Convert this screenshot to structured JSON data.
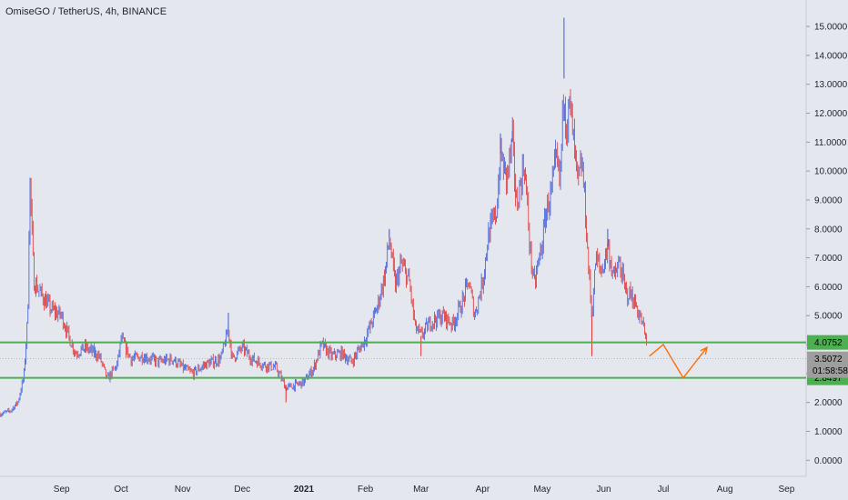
{
  "title": "OmiseGO / TetherUS, 4h, BINANCE",
  "colors": {
    "background": "#e5e7ee",
    "up": "#3b5bdb",
    "down": "#e03131",
    "support_line": "#4caf50",
    "projection": "#ff6d00",
    "price_tag_bg": "#9e9e9e"
  },
  "chart_data": {
    "type": "candlestick",
    "ylim": [
      -0.4,
      15.6
    ],
    "y_ticks": [
      "15.0000",
      "14.0000",
      "13.0000",
      "12.0000",
      "11.0000",
      "10.0000",
      "9.0000",
      "8.0000",
      "7.0000",
      "6.0000",
      "5.0000",
      "4.0000",
      "3.0000",
      "2.0000",
      "1.0000",
      "0.0000"
    ],
    "y_tick_values": [
      15,
      14,
      13,
      12,
      11,
      10,
      9,
      8,
      7,
      6,
      5,
      4,
      3,
      2,
      1,
      0
    ],
    "x_tick_labels": [
      "Sep",
      "Oct",
      "Nov",
      "Dec",
      "2021",
      "Feb",
      "Mar",
      "Apr",
      "May",
      "Jun",
      "Jul",
      "Aug",
      "Sep"
    ],
    "x_tick_dates": [
      "2020-09-01",
      "2020-10-01",
      "2020-11-01",
      "2020-12-01",
      "2021-01-01",
      "2021-02-01",
      "2021-03-01",
      "2021-04-01",
      "2021-05-01",
      "2021-06-01",
      "2021-07-01",
      "2021-08-01",
      "2021-09-01"
    ],
    "price_path": [
      [
        "2020-08-01",
        1.6
      ],
      [
        "2020-08-06",
        1.7
      ],
      [
        "2020-08-10",
        2.0
      ],
      [
        "2020-08-13",
        2.9
      ],
      [
        "2020-08-15",
        5.0
      ],
      [
        "2020-08-16",
        9.8
      ],
      [
        "2020-08-18",
        6.2
      ],
      [
        "2020-08-22",
        5.7
      ],
      [
        "2020-08-27",
        5.2
      ],
      [
        "2020-09-01",
        5.0
      ],
      [
        "2020-09-05",
        4.2
      ],
      [
        "2020-09-08",
        3.7
      ],
      [
        "2020-09-13",
        3.9
      ],
      [
        "2020-09-20",
        3.6
      ],
      [
        "2020-09-24",
        2.8
      ],
      [
        "2020-09-29",
        3.3
      ],
      [
        "2020-10-01",
        4.2
      ],
      [
        "2020-10-06",
        3.5
      ],
      [
        "2020-10-12",
        3.6
      ],
      [
        "2020-10-20",
        3.4
      ],
      [
        "2020-10-27",
        3.5
      ],
      [
        "2020-11-01",
        3.2
      ],
      [
        "2020-11-06",
        3.0
      ],
      [
        "2020-11-12",
        3.3
      ],
      [
        "2020-11-20",
        3.5
      ],
      [
        "2020-11-24",
        4.5
      ],
      [
        "2020-11-26",
        3.5
      ],
      [
        "2020-12-01",
        3.9
      ],
      [
        "2020-12-06",
        3.5
      ],
      [
        "2020-12-12",
        3.3
      ],
      [
        "2020-12-18",
        3.2
      ],
      [
        "2020-12-23",
        2.5
      ],
      [
        "2020-12-28",
        2.6
      ],
      [
        "2021-01-01",
        2.7
      ],
      [
        "2021-01-06",
        3.2
      ],
      [
        "2021-01-10",
        4.0
      ],
      [
        "2021-01-15",
        3.6
      ],
      [
        "2021-01-20",
        3.7
      ],
      [
        "2021-01-25",
        3.4
      ],
      [
        "2021-02-01",
        4.2
      ],
      [
        "2021-02-07",
        5.3
      ],
      [
        "2021-02-11",
        6.5
      ],
      [
        "2021-02-13",
        7.7
      ],
      [
        "2021-02-16",
        6.0
      ],
      [
        "2021-02-19",
        6.8
      ],
      [
        "2021-02-23",
        6.2
      ],
      [
        "2021-02-26",
        4.6
      ],
      [
        "2021-03-01",
        4.3
      ],
      [
        "2021-03-06",
        4.8
      ],
      [
        "2021-03-12",
        5.0
      ],
      [
        "2021-03-17",
        4.7
      ],
      [
        "2021-03-22",
        5.5
      ],
      [
        "2021-03-25",
        6.2
      ],
      [
        "2021-03-28",
        5.0
      ],
      [
        "2021-04-01",
        6.2
      ],
      [
        "2021-04-04",
        7.8
      ],
      [
        "2021-04-08",
        8.6
      ],
      [
        "2021-04-10",
        10.6
      ],
      [
        "2021-04-13",
        9.7
      ],
      [
        "2021-04-16",
        11.0
      ],
      [
        "2021-04-18",
        8.8
      ],
      [
        "2021-04-22",
        10.3
      ],
      [
        "2021-04-25",
        7.2
      ],
      [
        "2021-04-27",
        6.0
      ],
      [
        "2021-04-29",
        6.8
      ],
      [
        "2021-05-01",
        7.5
      ],
      [
        "2021-05-03",
        8.6
      ],
      [
        "2021-05-06",
        9.4
      ],
      [
        "2021-05-08",
        10.4
      ],
      [
        "2021-05-10",
        9.6
      ],
      [
        "2021-05-12",
        13.2
      ],
      [
        "2021-05-13",
        11.5
      ],
      [
        "2021-05-15",
        12.3
      ],
      [
        "2021-05-17",
        10.8
      ],
      [
        "2021-05-19",
        9.5
      ],
      [
        "2021-05-21",
        10.3
      ],
      [
        "2021-05-23",
        8.4
      ],
      [
        "2021-05-24",
        7.0
      ],
      [
        "2021-05-26",
        5.0
      ],
      [
        "2021-05-28",
        7.0
      ],
      [
        "2021-05-31",
        6.5
      ],
      [
        "2021-06-03",
        7.4
      ],
      [
        "2021-06-06",
        6.3
      ],
      [
        "2021-06-09",
        6.8
      ],
      [
        "2021-06-12",
        5.8
      ],
      [
        "2021-06-15",
        5.7
      ],
      [
        "2021-06-18",
        5.2
      ],
      [
        "2021-06-21",
        4.6
      ],
      [
        "2021-06-23",
        3.8
      ]
    ],
    "spikes": [
      [
        "2020-08-16",
        9.8
      ],
      [
        "2021-02-13",
        8.0
      ],
      [
        "2021-04-10",
        11.3
      ],
      [
        "2021-05-12",
        15.3
      ],
      [
        "2021-05-26",
        3.6
      ],
      [
        "2021-06-03",
        8.0
      ],
      [
        "2020-12-23",
        2.0
      ],
      [
        "2021-03-01",
        3.6
      ],
      [
        "2020-11-24",
        5.1
      ],
      [
        "2021-04-16",
        11.4
      ]
    ],
    "annotations": {
      "resistance": 4.0752,
      "support": 2.8497,
      "projection": [
        [
          "2021-06-24",
          3.6
        ],
        [
          "2021-07-01",
          4.0
        ],
        [
          "2021-07-11",
          2.85
        ],
        [
          "2021-07-23",
          3.9
        ]
      ]
    },
    "last_price": {
      "value": 3.5072,
      "label": "3.5072",
      "countdown": "01:58:58"
    },
    "resistance_label": "4.0752",
    "support_label": "2.8497"
  }
}
